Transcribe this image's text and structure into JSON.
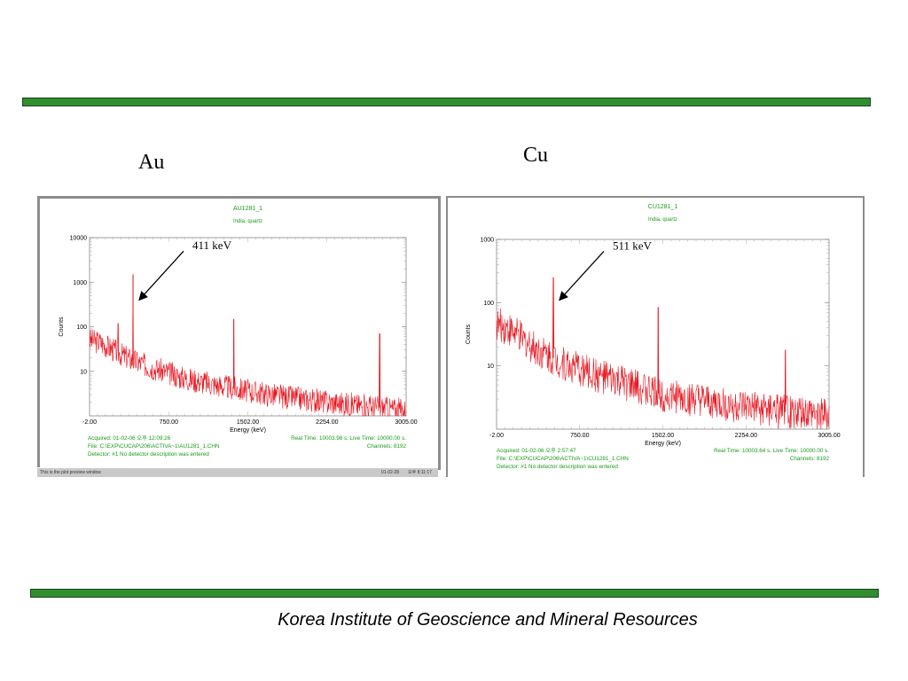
{
  "slide": {
    "footer": "Korea Institute of Geoscience and Mineral Resources",
    "accent_color": "#2f8f2f"
  },
  "chart_data": [
    {
      "type": "line",
      "label": "Au",
      "title": "AU1281_1",
      "subtitle": "India, quartz",
      "xlabel": "Energy (keV)",
      "ylabel": "Counts",
      "yscale": "log",
      "ylim": [
        1,
        10000
      ],
      "y_ticks": [
        "10000",
        "1000",
        "100",
        "10"
      ],
      "xlim": [
        -2,
        3005
      ],
      "x_ticks": [
        "-2.00",
        "750.00",
        "1502.00",
        "2254.00",
        "3005.00"
      ],
      "series_color": "#e8141e",
      "baseline": [
        [
          -2,
          50
        ],
        [
          100,
          45
        ],
        [
          250,
          28
        ],
        [
          400,
          18
        ],
        [
          600,
          12
        ],
        [
          900,
          7
        ],
        [
          1200,
          5
        ],
        [
          1500,
          3.6
        ],
        [
          1900,
          2.6
        ],
        [
          2300,
          2.0
        ],
        [
          2700,
          1.6
        ],
        [
          3005,
          1.3
        ]
      ],
      "peaks": [
        [
          270,
          120
        ],
        [
          411,
          1500
        ],
        [
          1368,
          150
        ],
        [
          2754,
          70
        ]
      ],
      "annotation": {
        "text": "411 keV",
        "x": 411,
        "y": 400
      },
      "info_left": [
        "Acquired:  01-02-06 오후 12:09:26",
        "File:  C:\\EXP\\CUCAP\\206\\ACTIVA~1\\AU1281_1.CHN",
        "Detector:  #1 No detector description was entered"
      ],
      "info_right": [
        "Real Time: 10003.98 s.  Live Time: 10000.00 s.",
        "Channels:  8192"
      ],
      "status_text": "This is the plot preview window",
      "status_date": "01-02-28",
      "status_time": "오후 8:11:17"
    },
    {
      "type": "line",
      "label": "Cu",
      "title": "CU1281_1",
      "subtitle": "India, quartz",
      "xlabel": "Energy (keV)",
      "ylabel": "Counts",
      "yscale": "log",
      "ylim": [
        1,
        1000
      ],
      "y_ticks": [
        "1000",
        "100",
        "10"
      ],
      "xlim": [
        -2,
        3005
      ],
      "x_ticks": [
        "-2.00",
        "750.00",
        "1502.00",
        "2254.00",
        "3005.00"
      ],
      "series_color": "#e8141e",
      "baseline": [
        [
          -2,
          45
        ],
        [
          100,
          40
        ],
        [
          250,
          25
        ],
        [
          400,
          17
        ],
        [
          600,
          11
        ],
        [
          900,
          7
        ],
        [
          1200,
          5
        ],
        [
          1500,
          3.5
        ],
        [
          1900,
          2.6
        ],
        [
          2300,
          2.1
        ],
        [
          2700,
          1.8
        ],
        [
          3005,
          1.6
        ]
      ],
      "peaks": [
        [
          511,
          250
        ],
        [
          1460,
          85
        ],
        [
          2610,
          18
        ]
      ],
      "annotation": {
        "text": "511 keV",
        "x": 511,
        "y": 110
      },
      "info_left": [
        "Acquired:  01-02-06 오후 2:57:47",
        "File:  C:\\EXP\\CUCAP\\206\\ACTIVA~1\\CU1281_1.CHN",
        "Detector:  #1 No detector description was entered"
      ],
      "info_right": [
        "Real Time: 10003.64 s.  Live Time: 10000.00 s.",
        "Channels:  8192"
      ]
    }
  ]
}
